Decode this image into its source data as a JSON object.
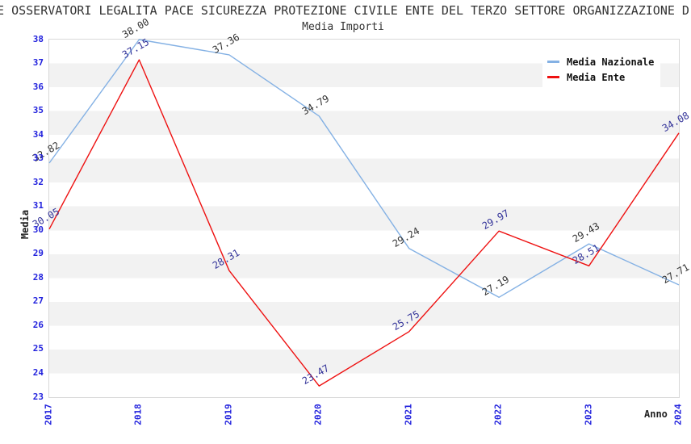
{
  "title": "E OSSERVATORI LEGALITA PACE SICUREZZA PROTEZIONE CIVILE ENTE DEL TERZO SETTORE ORGANIZZAZIONE D",
  "subtitle": "Media Importi",
  "legend": [
    {
      "label": "Media Nazionale",
      "color": "#84b1e4"
    },
    {
      "label": "Media Ente",
      "color": "#ee1111"
    }
  ],
  "axes": {
    "xlabel": "Anno",
    "ylabel": "Media",
    "y_ticks": [
      38,
      37,
      36,
      35,
      34,
      33,
      32,
      31,
      30,
      29,
      28,
      27,
      26,
      25,
      24,
      23
    ],
    "x_ticks": [
      "2017",
      "2018",
      "2019",
      "2020",
      "2021",
      "2022",
      "2023",
      "2024"
    ],
    "tick_color": "#2222dd"
  },
  "chart_data": {
    "type": "line",
    "title": "Media Importi",
    "xlabel": "Anno",
    "ylabel": "Media",
    "x": [
      2017,
      2018,
      2019,
      2020,
      2021,
      2022,
      2023,
      2024
    ],
    "ylim": [
      23,
      38
    ],
    "grid": "horizontal-alternating-bands",
    "legend_position": "top-right",
    "series": [
      {
        "name": "Media Nazionale",
        "color": "#84b1e4",
        "label_color": "#333333",
        "values": [
          32.82,
          38.0,
          37.36,
          34.79,
          29.24,
          27.19,
          29.43,
          27.71
        ]
      },
      {
        "name": "Media Ente",
        "color": "#ee1111",
        "label_color": "#333399",
        "values": [
          30.05,
          37.15,
          28.31,
          23.47,
          25.75,
          29.97,
          28.51,
          34.08
        ]
      }
    ]
  },
  "colors": {
    "band_gray": "#f2f2f2",
    "plot_border": "#d8d8d8",
    "tick_blue": "#2222dd"
  }
}
